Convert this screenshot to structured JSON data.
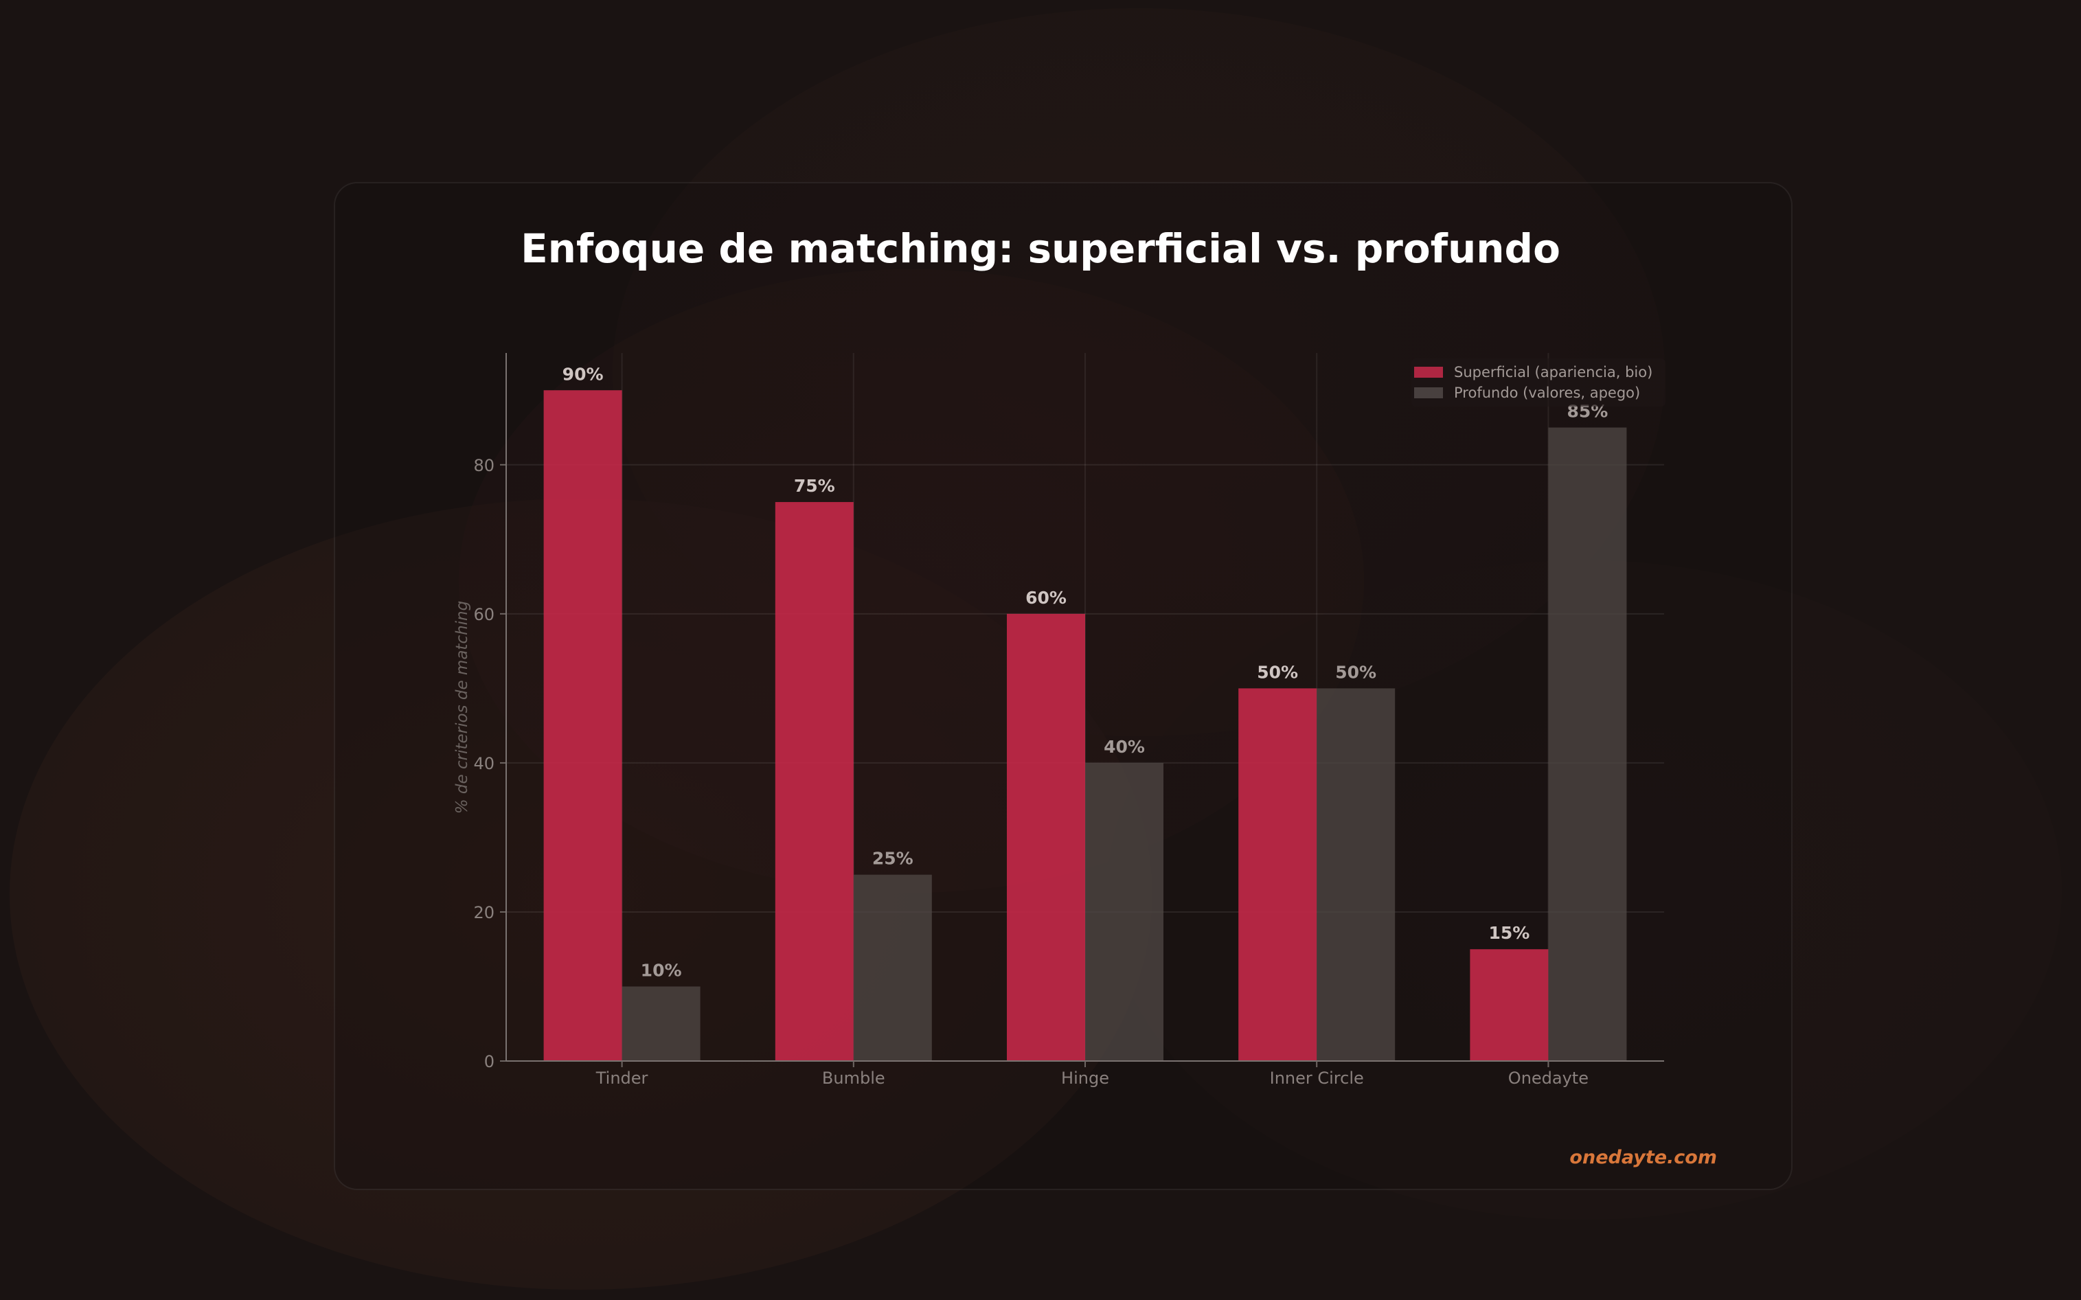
{
  "chart_data": {
    "type": "bar",
    "title": "Enfoque de matching: superficial vs. profundo",
    "xlabel": "",
    "ylabel": "% de criterios de matching",
    "ylim": [
      0,
      95
    ],
    "yticks": [
      0,
      20,
      40,
      60,
      80
    ],
    "grid": true,
    "legend_position": "top-right",
    "categories": [
      "Tinder",
      "Bumble",
      "Hinge",
      "Inner Circle",
      "Onedayte"
    ],
    "series": [
      {
        "name": "Superficial (apariencia, bio)",
        "color": "#c8294a",
        "values": [
          90,
          75,
          60,
          50,
          15
        ],
        "labels": [
          "90%",
          "75%",
          "60%",
          "50%",
          "15%"
        ]
      },
      {
        "name": "Profundo (valores, apego)",
        "color": "#4a4241",
        "values": [
          10,
          25,
          40,
          50,
          85
        ],
        "labels": [
          "10%",
          "25%",
          "40%",
          "50%",
          "85%"
        ]
      }
    ]
  },
  "footer": {
    "brand": "onedayte.com",
    "brand_color": "#d9773a"
  }
}
